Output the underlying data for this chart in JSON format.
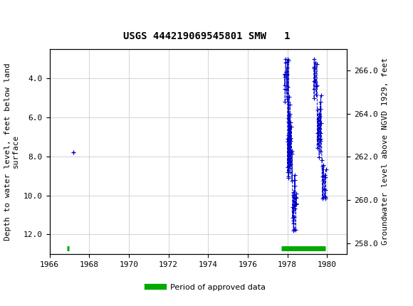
{
  "title": "USGS 444219069545801 SMW   1",
  "ylabel_left": "Depth to water level, feet below land\nsurface",
  "ylabel_right": "Groundwater level above NGVD 1929, feet",
  "xlim": [
    1966,
    1981
  ],
  "ylim_left": [
    13.0,
    2.5
  ],
  "ylim_right": [
    257.5,
    267.0
  ],
  "xticks": [
    1966,
    1968,
    1970,
    1972,
    1974,
    1976,
    1978,
    1980
  ],
  "yticks_left": [
    4.0,
    6.0,
    8.0,
    10.0,
    12.0
  ],
  "yticks_right": [
    258.0,
    260.0,
    262.0,
    264.0,
    266.0
  ],
  "header_color": "#006633",
  "data_color": "#0000CC",
  "approved_color": "#00AA00",
  "single_point_x": 1967.2,
  "single_point_y": 7.8
}
